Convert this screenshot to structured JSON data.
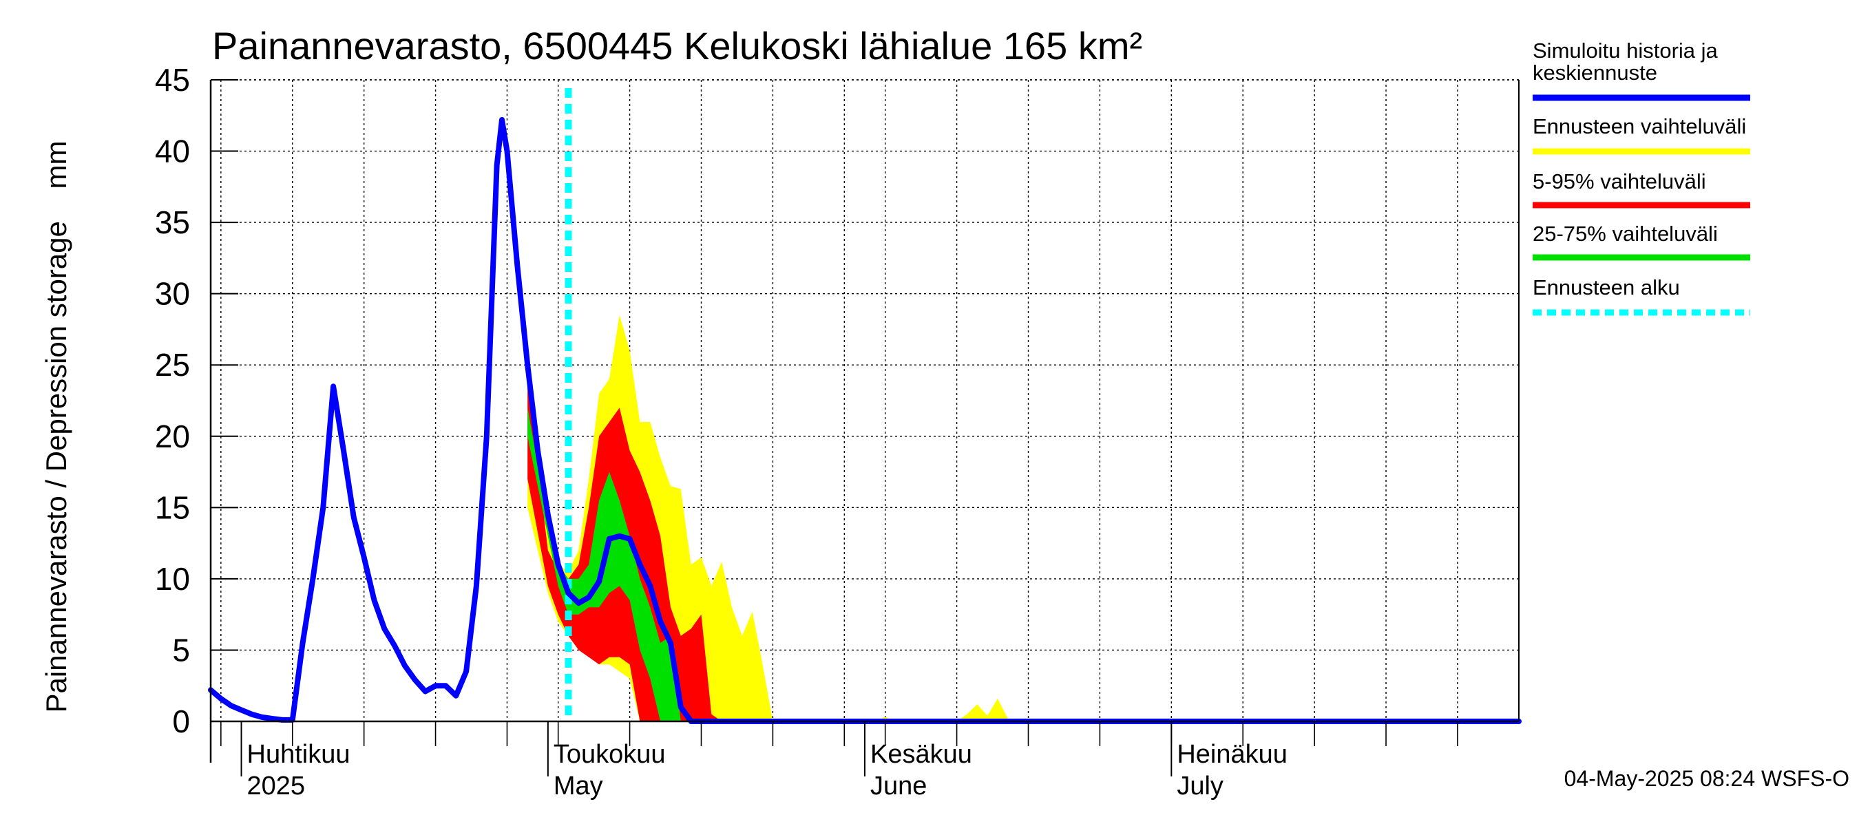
{
  "chart_data": {
    "type": "area",
    "title": "Painannevarasto, 6500445 Kelukoski lähialue 165 km²",
    "ylabel": "Painannevarasto / Depression storage    mm",
    "ylim": [
      0,
      45
    ],
    "yticks": [
      0,
      5,
      10,
      15,
      20,
      25,
      30,
      35,
      40,
      45
    ],
    "xlim": [
      "2025-03-29",
      "2025-08-04"
    ],
    "x_month_labels": [
      {
        "date": "2025-04-01",
        "fi": "Huhtikuu",
        "en": "2025"
      },
      {
        "date": "2025-05-01",
        "fi": "Toukokuu",
        "en": "May"
      },
      {
        "date": "2025-06-01",
        "fi": "Kesäkuu",
        "en": "June"
      },
      {
        "date": "2025-07-01",
        "fi": "Heinäkuu",
        "en": "July"
      }
    ],
    "forecast_start": "2025-05-03",
    "grid": true,
    "legend_placement": "right",
    "footer": "04-May-2025 08:24 WSFS-O",
    "colors": {
      "history": "#0000ff",
      "range_full": "#ffff00",
      "range_5_95": "#ff0000",
      "range_25_75": "#00e000",
      "forecast_start": "#00ffff"
    },
    "legend": [
      {
        "key": "history",
        "label_lines": [
          "Simuloitu historia ja",
          "keskiennuste"
        ],
        "style": "line"
      },
      {
        "key": "range_full",
        "label_lines": [
          "Ennusteen vaihteluväli"
        ],
        "style": "line"
      },
      {
        "key": "range_5_95",
        "label_lines": [
          "5-95% vaihteluväli"
        ],
        "style": "line"
      },
      {
        "key": "range_25_75",
        "label_lines": [
          "25-75% vaihteluväli"
        ],
        "style": "line"
      },
      {
        "key": "forecast_start",
        "label_lines": [
          "Ennusteen alku"
        ],
        "style": "dashed"
      }
    ],
    "series": [
      {
        "name": "Simuloitu historia ja keskiennuste",
        "type": "line",
        "points": [
          [
            "2025-03-29",
            2.2
          ],
          [
            "2025-03-30",
            1.6
          ],
          [
            "2025-03-31",
            1.1
          ],
          [
            "2025-04-01",
            0.8
          ],
          [
            "2025-04-02",
            0.5
          ],
          [
            "2025-04-03",
            0.3
          ],
          [
            "2025-04-04",
            0.2
          ],
          [
            "2025-04-05",
            0.1
          ],
          [
            "2025-04-06",
            0.1
          ],
          [
            "2025-04-07",
            5.5
          ],
          [
            "2025-04-08",
            10
          ],
          [
            "2025-04-09",
            15
          ],
          [
            "2025-04-10",
            23.5
          ],
          [
            "2025-04-11",
            19
          ],
          [
            "2025-04-12",
            14.3
          ],
          [
            "2025-04-13",
            11.5
          ],
          [
            "2025-04-14",
            8.5
          ],
          [
            "2025-04-15",
            6.5
          ],
          [
            "2025-04-16",
            5.3
          ],
          [
            "2025-04-17",
            3.9
          ],
          [
            "2025-04-18",
            2.9
          ],
          [
            "2025-04-19",
            2.1
          ],
          [
            "2025-04-20",
            2.5
          ],
          [
            "2025-04-21",
            2.5
          ],
          [
            "2025-04-22",
            1.8
          ],
          [
            "2025-04-23",
            3.5
          ],
          [
            "2025-04-24",
            9.5
          ],
          [
            "2025-04-25",
            20
          ],
          [
            "2025-04-26",
            39
          ],
          [
            "2025-04-26T12:00",
            42.2
          ],
          [
            "2025-04-27",
            40
          ],
          [
            "2025-04-28",
            32
          ],
          [
            "2025-04-29",
            25
          ],
          [
            "2025-04-30",
            19
          ],
          [
            "2025-05-01",
            14.5
          ],
          [
            "2025-05-02",
            11
          ],
          [
            "2025-05-03",
            9
          ],
          [
            "2025-05-04",
            8.3
          ],
          [
            "2025-05-05",
            8.7
          ],
          [
            "2025-05-06",
            9.8
          ],
          [
            "2025-05-07",
            12.8
          ],
          [
            "2025-05-08",
            13
          ],
          [
            "2025-05-09",
            12.8
          ],
          [
            "2025-05-10",
            11
          ],
          [
            "2025-05-11",
            9.5
          ],
          [
            "2025-05-12",
            7
          ],
          [
            "2025-05-13",
            5.5
          ],
          [
            "2025-05-14",
            1
          ],
          [
            "2025-05-15",
            0
          ],
          [
            "2025-08-04",
            0
          ]
        ]
      },
      {
        "name": "Ennusteen vaihteluväli",
        "type": "band",
        "lower": [
          [
            "2025-04-29",
            15
          ],
          [
            "2025-05-01",
            9
          ],
          [
            "2025-05-02",
            7
          ],
          [
            "2025-05-03",
            6
          ],
          [
            "2025-05-04",
            5.5
          ],
          [
            "2025-05-05",
            5
          ],
          [
            "2025-05-06",
            4
          ],
          [
            "2025-05-07",
            4
          ],
          [
            "2025-05-08",
            3.5
          ],
          [
            "2025-05-09",
            3
          ],
          [
            "2025-05-10",
            0
          ],
          [
            "2025-08-04",
            0
          ]
        ],
        "upper": [
          [
            "2025-04-29",
            24
          ],
          [
            "2025-05-01",
            14
          ],
          [
            "2025-05-02",
            11
          ],
          [
            "2025-05-03",
            10.5
          ],
          [
            "2025-05-04",
            12
          ],
          [
            "2025-05-05",
            17
          ],
          [
            "2025-05-06",
            23
          ],
          [
            "2025-05-07",
            24
          ],
          [
            "2025-05-08",
            28.5
          ],
          [
            "2025-05-09",
            26
          ],
          [
            "2025-05-10",
            21
          ],
          [
            "2025-05-11",
            21
          ],
          [
            "2025-05-12",
            18.5
          ],
          [
            "2025-05-13",
            16.5
          ],
          [
            "2025-05-14",
            16.3
          ],
          [
            "2025-05-15",
            11
          ],
          [
            "2025-05-16",
            11.5
          ],
          [
            "2025-05-17",
            9.5
          ],
          [
            "2025-05-18",
            11.2
          ],
          [
            "2025-05-19",
            8
          ],
          [
            "2025-05-20",
            6
          ],
          [
            "2025-05-21",
            7.7
          ],
          [
            "2025-05-22",
            4
          ],
          [
            "2025-05-23",
            0
          ],
          [
            "2025-06-02",
            0
          ],
          [
            "2025-06-03",
            0.3
          ],
          [
            "2025-06-04",
            0
          ],
          [
            "2025-06-10",
            0
          ],
          [
            "2025-06-11",
            0.5
          ],
          [
            "2025-06-12",
            1.2
          ],
          [
            "2025-06-13",
            0.4
          ],
          [
            "2025-06-14",
            1.6
          ],
          [
            "2025-06-15",
            0.2
          ],
          [
            "2025-06-16",
            0
          ],
          [
            "2025-08-04",
            0
          ]
        ]
      },
      {
        "name": "5-95% vaihteluväli",
        "type": "band",
        "lower": [
          [
            "2025-04-29",
            17
          ],
          [
            "2025-05-01",
            9.5
          ],
          [
            "2025-05-02",
            7.5
          ],
          [
            "2025-05-03",
            6
          ],
          [
            "2025-05-04",
            5
          ],
          [
            "2025-05-05",
            4.5
          ],
          [
            "2025-05-06",
            4
          ],
          [
            "2025-05-07",
            4.5
          ],
          [
            "2025-05-08",
            4.5
          ],
          [
            "2025-05-09",
            4
          ],
          [
            "2025-05-10",
            0
          ],
          [
            "2025-08-04",
            0
          ]
        ],
        "upper": [
          [
            "2025-04-29",
            24
          ],
          [
            "2025-05-01",
            12
          ],
          [
            "2025-05-02",
            10.5
          ],
          [
            "2025-05-03",
            10
          ],
          [
            "2025-05-04",
            11
          ],
          [
            "2025-05-05",
            15
          ],
          [
            "2025-05-06",
            20
          ],
          [
            "2025-05-07",
            21
          ],
          [
            "2025-05-08",
            22
          ],
          [
            "2025-05-09",
            19
          ],
          [
            "2025-05-10",
            17.5
          ],
          [
            "2025-05-11",
            15.5
          ],
          [
            "2025-05-12",
            13
          ],
          [
            "2025-05-13",
            8
          ],
          [
            "2025-05-14",
            6
          ],
          [
            "2025-05-15",
            6.5
          ],
          [
            "2025-05-16",
            7.5
          ],
          [
            "2025-05-17",
            0.5
          ],
          [
            "2025-05-18",
            0
          ],
          [
            "2025-08-04",
            0
          ]
        ]
      },
      {
        "name": "25-75% vaihteluväli",
        "type": "band",
        "lower": [
          [
            "2025-04-29",
            20
          ],
          [
            "2025-05-01",
            13
          ],
          [
            "2025-05-02",
            9.5
          ],
          [
            "2025-05-03",
            7.5
          ],
          [
            "2025-05-04",
            7.5
          ],
          [
            "2025-05-05",
            8
          ],
          [
            "2025-05-06",
            8
          ],
          [
            "2025-05-07",
            9
          ],
          [
            "2025-05-08",
            9.5
          ],
          [
            "2025-05-09",
            8.5
          ],
          [
            "2025-05-10",
            5
          ],
          [
            "2025-05-11",
            3
          ],
          [
            "2025-05-12",
            0
          ],
          [
            "2025-08-04",
            0
          ]
        ],
        "upper": [
          [
            "2025-04-29",
            22
          ],
          [
            "2025-05-01",
            14
          ],
          [
            "2025-05-02",
            11
          ],
          [
            "2025-05-03",
            10
          ],
          [
            "2025-05-04",
            10
          ],
          [
            "2025-05-05",
            11
          ],
          [
            "2025-05-06",
            15.5
          ],
          [
            "2025-05-07",
            17.5
          ],
          [
            "2025-05-08",
            15.5
          ],
          [
            "2025-05-09",
            13
          ],
          [
            "2025-05-10",
            10
          ],
          [
            "2025-05-11",
            8
          ],
          [
            "2025-05-12",
            5.5
          ],
          [
            "2025-05-13",
            6
          ],
          [
            "2025-05-14",
            0
          ],
          [
            "2025-08-04",
            0
          ]
        ]
      }
    ]
  }
}
